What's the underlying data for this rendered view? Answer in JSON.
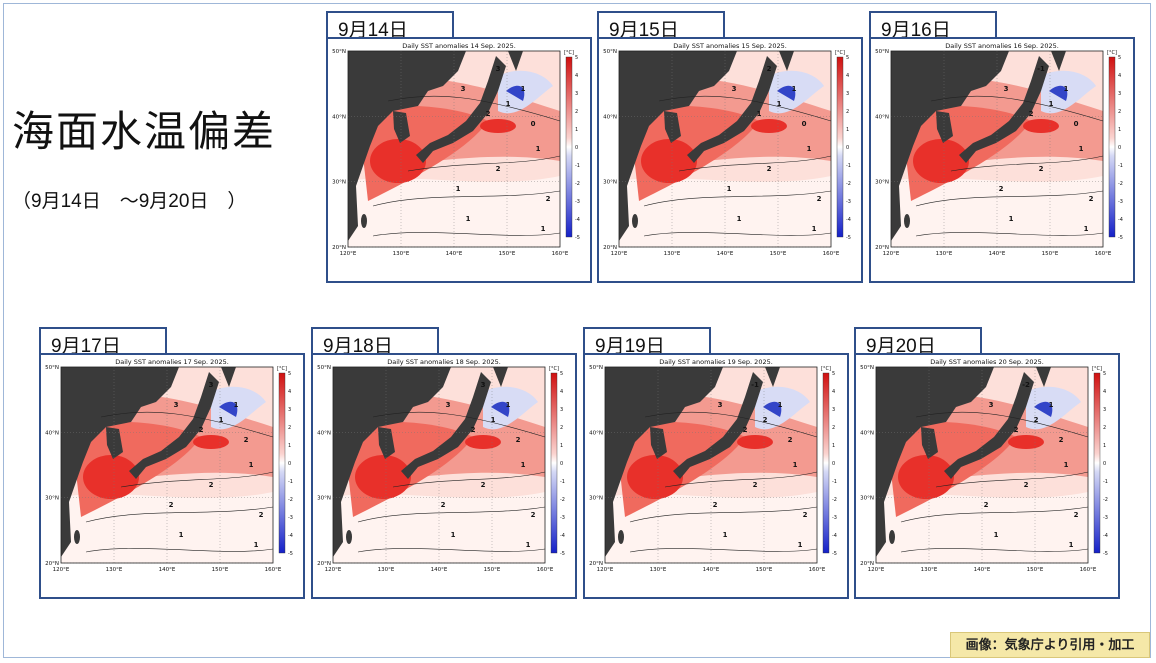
{
  "title": "海面水温偏差",
  "subtitle": "（9月14日　～9月20日　）",
  "credit": "画像：気象庁より引用・加工",
  "colors": {
    "tab_border": "#2f4f8a",
    "land": "#3a3a3a",
    "warm_strong": "#e8302a",
    "warm_mid": "#f39a90",
    "warm_light": "#fde0da",
    "cool": "#3345c8",
    "credit_bg": "#f5e8a8"
  },
  "map_axes": {
    "lat_labels": [
      "50°N",
      "40°N",
      "30°N",
      "20°N"
    ],
    "lon_labels": [
      "120°E",
      "130°E",
      "140°E",
      "150°E",
      "160°E"
    ],
    "unit_label": "[°C]",
    "scale_ticks": [
      "5",
      "4",
      "3",
      "2",
      "1",
      "0",
      "-1",
      "-2",
      "-3",
      "-4",
      "-5"
    ]
  },
  "maps": [
    {
      "date_label": "9月14日",
      "chart_title": "Daily SST anomalies 14 Sep. 2025.",
      "contour_labels": [
        "3",
        "3",
        "2",
        "1",
        "1",
        "0",
        "2",
        "1",
        "1",
        "2",
        "1",
        "1"
      ]
    },
    {
      "date_label": "9月15日",
      "chart_title": "Daily SST anomalies 15 Sep. 2025.",
      "contour_labels": [
        "3",
        "2",
        "1",
        "1",
        "1",
        "0",
        "2",
        "1",
        "1",
        "2",
        "1",
        "1"
      ]
    },
    {
      "date_label": "9月16日",
      "chart_title": "Daily SST anomalies 16 Sep. 2025.",
      "contour_labels": [
        "3",
        "-1",
        "2",
        "1",
        "1",
        "0",
        "2",
        "2",
        "1",
        "2",
        "1",
        "1"
      ]
    },
    {
      "date_label": "9月17日",
      "chart_title": "Daily SST anomalies 17 Sep. 2025.",
      "contour_labels": [
        "3",
        "3",
        "2",
        "1",
        "1",
        "2",
        "2",
        "2",
        "1",
        "2",
        "1",
        "1"
      ]
    },
    {
      "date_label": "9月18日",
      "chart_title": "Daily SST anomalies 18 Sep. 2025.",
      "contour_labels": [
        "3",
        "3",
        "2",
        "1",
        "1",
        "2",
        "2",
        "2",
        "1",
        "2",
        "1",
        "1"
      ]
    },
    {
      "date_label": "9月19日",
      "chart_title": "Daily SST anomalies 19 Sep. 2025.",
      "contour_labels": [
        "3",
        "-1",
        "2",
        "2",
        "1",
        "2",
        "2",
        "2",
        "1",
        "2",
        "1",
        "1"
      ]
    },
    {
      "date_label": "9月20日",
      "chart_title": "Daily SST anomalies 20 Sep. 2025.",
      "contour_labels": [
        "3",
        "-2",
        "2",
        "2",
        "1",
        "2",
        "2",
        "2",
        "1",
        "2",
        "1",
        "1"
      ]
    }
  ]
}
